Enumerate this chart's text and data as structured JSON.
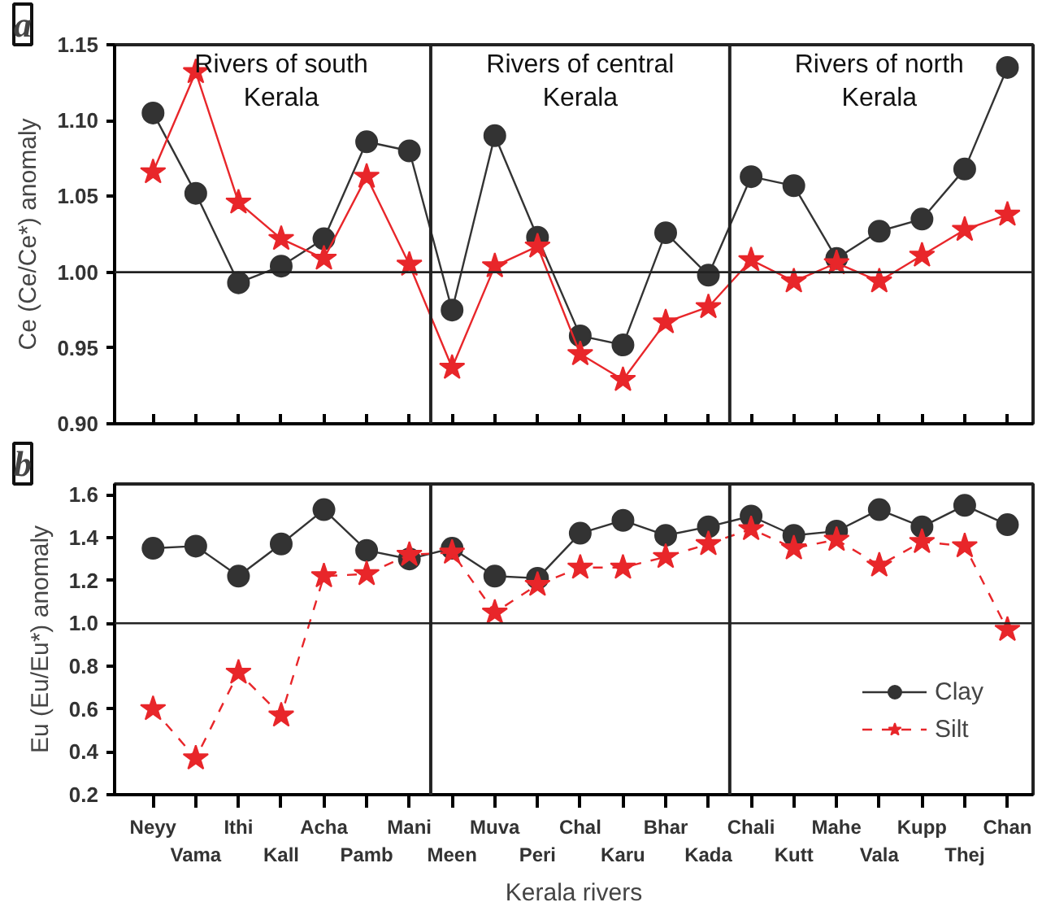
{
  "chart_data": [
    {
      "type": "line",
      "title": "a",
      "ylabel": "Ce (Ce/Ce*) anomaly",
      "categories": [
        null,
        null,
        null,
        null,
        null,
        null,
        null,
        null,
        null,
        null,
        null,
        null,
        null,
        null,
        null,
        null,
        null,
        null,
        null,
        null,
        null
      ],
      "series": [
        {
          "color": "#333333",
          "marker": "circle",
          "line_style": "solid",
          "values": [
            1.105,
            1.052,
            0.993,
            1.004,
            1.022,
            1.086,
            1.08,
            0.975,
            1.09,
            1.023,
            0.958,
            0.952,
            1.026,
            0.998,
            1.063,
            1.057,
            1.009,
            1.027,
            1.035,
            1.068,
            1.135
          ]
        },
        {
          "color": "#e8262a",
          "marker": "star",
          "line_style": "solid",
          "values": [
            1.066,
            1.132,
            1.046,
            1.022,
            1.009,
            1.063,
            1.005,
            0.937,
            1.004,
            1.017,
            0.946,
            0.929,
            0.967,
            0.977,
            1.008,
            0.994,
            1.006,
            0.994,
            1.011,
            1.028,
            1.038
          ]
        }
      ],
      "ylim": [
        0.9,
        1.15
      ],
      "yticks": [
        {
          "value": 0.9,
          "label": "0.90"
        },
        {
          "value": 0.95,
          "label": "0.95"
        },
        {
          "value": 1.0,
          "label": "1.00"
        },
        {
          "value": 1.05,
          "label": "1.05"
        },
        {
          "value": 1.1,
          "label": "1.10"
        },
        {
          "value": 1.15,
          "label": "1.15"
        }
      ],
      "ref_lines": [
        {
          "axis": "y",
          "value": 1.0
        }
      ],
      "annotations": [
        "Rivers of south Kerala",
        "Rivers of central Kerala",
        "Rivers of north Kerala"
      ],
      "tick_labels": "y",
      "grid": false,
      "legend": false
    },
    {
      "type": "line",
      "title": "b",
      "ylabel": "Eu (Eu/Eu*) anomaly",
      "xlabel": "Kerala rivers",
      "categories": [
        "Neyy",
        "Vama",
        "Ithi",
        "Kall",
        "Acha",
        "Pamb",
        "Mani",
        "Meen",
        "Muva",
        "Peri",
        "Chal",
        "Karu",
        "Bhar",
        "Kada",
        "Chali",
        "Kutt",
        "Mahe",
        "Vala",
        "Kupp",
        "Thej",
        "Chan"
      ],
      "series": [
        {
          "name": "Clay",
          "color": "#333333",
          "marker": "circle",
          "line_style": "solid",
          "values": [
            1.35,
            1.36,
            1.22,
            1.37,
            1.53,
            1.34,
            1.3,
            1.35,
            1.22,
            1.21,
            1.42,
            1.48,
            1.41,
            1.45,
            1.5,
            1.41,
            1.43,
            1.53,
            1.45,
            1.55,
            1.46
          ]
        },
        {
          "name": "Silt",
          "color": "#e8262a",
          "marker": "star",
          "line_style": "dashed",
          "values": [
            0.6,
            0.37,
            0.77,
            0.57,
            1.22,
            1.23,
            1.32,
            1.33,
            1.05,
            1.18,
            1.26,
            1.26,
            1.31,
            1.37,
            1.44,
            1.35,
            1.39,
            1.27,
            1.38,
            1.36,
            0.97
          ]
        }
      ],
      "ylim": [
        0.2,
        1.65
      ],
      "yticks": [
        0.2,
        0.4,
        0.6,
        0.8,
        {
          "value": 1.0,
          "label": "1.0"
        },
        1.2,
        1.4,
        1.6
      ],
      "ref_lines": [
        {
          "axis": "y",
          "value": 1.0
        }
      ],
      "grid": false,
      "legend": "bottom right"
    }
  ]
}
